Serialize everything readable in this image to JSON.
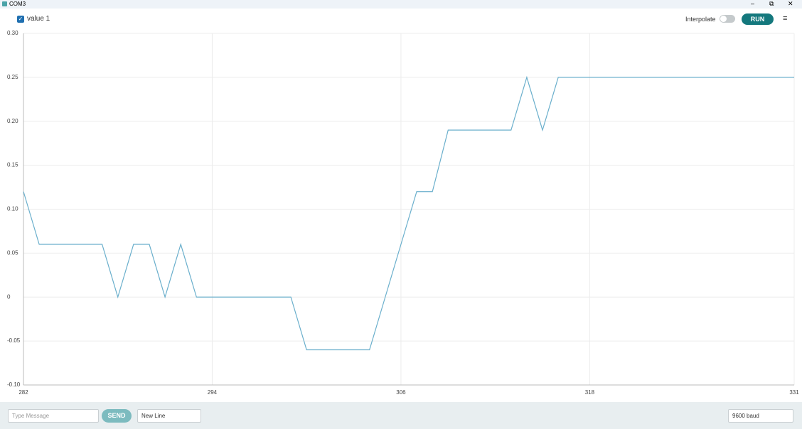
{
  "window": {
    "title": "COM3"
  },
  "toolbar": {
    "interpolate": "Interpolate",
    "run": "RUN"
  },
  "footer": {
    "message_placeholder": "Type Message",
    "send": "SEND",
    "line_ending": "New Line",
    "baud": "9600 baud"
  },
  "chart_data": {
    "type": "line",
    "x": [
      282,
      283,
      284,
      285,
      286,
      287,
      288,
      289,
      290,
      291,
      292,
      293,
      294,
      295,
      296,
      297,
      298,
      299,
      300,
      301,
      302,
      303,
      304,
      305,
      306,
      307,
      308,
      309,
      310,
      311,
      312,
      313,
      314,
      315,
      316,
      317,
      318,
      319,
      320,
      321,
      322,
      323,
      324,
      325,
      326,
      327,
      328,
      329,
      330,
      331
    ],
    "series": [
      {
        "name": "value 1",
        "color": "#6aafcc",
        "values": [
          0.12,
          0.06,
          0.06,
          0.06,
          0.06,
          0.06,
          0,
          0.06,
          0.06,
          0,
          0.06,
          0,
          0,
          0,
          0,
          0,
          0,
          0,
          -0.06,
          -0.06,
          -0.06,
          -0.06,
          -0.06,
          0,
          0.06,
          0.12,
          0.12,
          0.19,
          0.19,
          0.19,
          0.19,
          0.19,
          0.25,
          0.19,
          0.25,
          0.25,
          0.25,
          0.25,
          0.25,
          0.25,
          0.25,
          0.25,
          0.25,
          0.25,
          0.25,
          0.25,
          0.25,
          0.25,
          0.25,
          0.25
        ]
      }
    ],
    "xlim": [
      282,
      331
    ],
    "xticks": [
      282,
      294,
      306,
      318,
      331
    ],
    "ylim": [
      -0.1,
      0.3
    ],
    "yticks": [
      {
        "value": -0.1,
        "label": "-0.10"
      },
      -0.05,
      0,
      0.05,
      {
        "value": 0.1,
        "label": "0.10"
      },
      0.15,
      {
        "value": 0.2,
        "label": "0.20"
      },
      0.25,
      {
        "value": 0.3,
        "label": "0.30"
      }
    ],
    "grid": true
  }
}
